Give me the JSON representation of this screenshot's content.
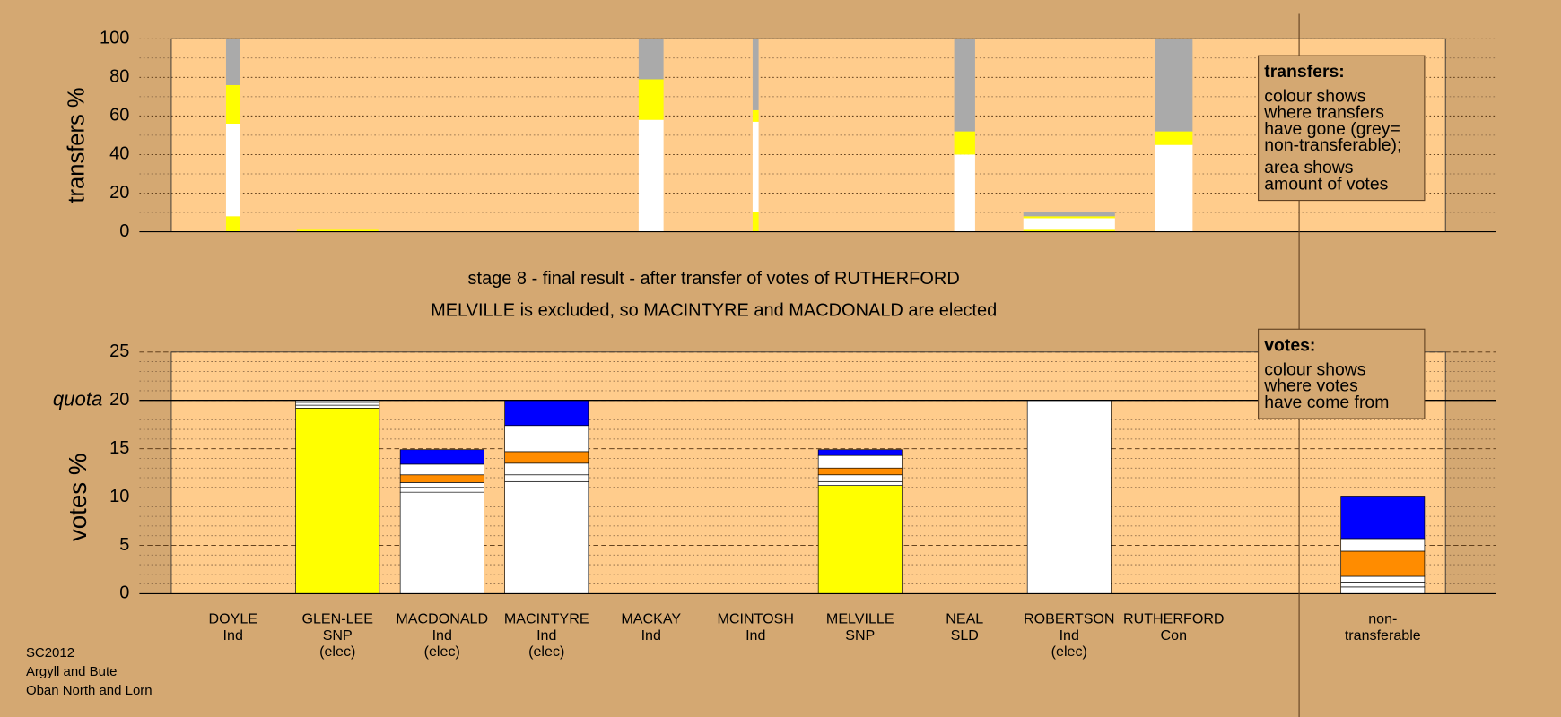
{
  "chart_data": [
    {
      "type": "stacked-column-variable-width",
      "ylabel": "transfers %",
      "ylim": [
        0,
        100
      ],
      "yticks": [
        0,
        20,
        40,
        60,
        80,
        100
      ],
      "columns": [
        {
          "transfer_volume": 14,
          "values": [
            8,
            48,
            20,
            24
          ],
          "colors": [
            "#ffff00",
            "#ffffff",
            "#ffff00",
            "#aaaaaa"
          ]
        },
        {
          "transfer_volume": 82,
          "values": [
            1
          ],
          "colors": [
            "#ffff00"
          ]
        },
        null,
        null,
        {
          "transfer_volume": 25,
          "values": [
            58,
            21,
            21
          ],
          "colors": [
            "#ffffff",
            "#ffff00",
            "#aaaaaa"
          ]
        },
        {
          "transfer_volume": 6,
          "values": [
            10,
            47,
            6,
            37
          ],
          "colors": [
            "#ffff00",
            "#ffffff",
            "#ffff00",
            "#aaaaaa"
          ]
        },
        null,
        {
          "transfer_volume": 21,
          "values": [
            40,
            12,
            48
          ],
          "colors": [
            "#ffffff",
            "#ffff00",
            "#aaaaaa"
          ]
        },
        {
          "transfer_volume": 92,
          "values": [
            1,
            6,
            1,
            2
          ],
          "colors": [
            "#ffff00",
            "#ffffff",
            "#ffff00",
            "#aaaaaa"
          ]
        },
        {
          "transfer_volume": 38,
          "values": [
            45,
            7,
            48
          ],
          "colors": [
            "#ffffff",
            "#ffff00",
            "#aaaaaa"
          ]
        }
      ],
      "legend": {
        "title": "transfers:",
        "lines": [
          "colour shows",
          "where transfers",
          "have gone (grey=",
          "non-transferable);"
        ],
        "lines2": [
          "area shows",
          "amount of votes"
        ]
      }
    },
    {
      "type": "stacked-column",
      "ylabel": "votes %",
      "ylim": [
        0,
        25
      ],
      "yticks": [
        0,
        5,
        10,
        15,
        20,
        25
      ],
      "quota": {
        "value": 20,
        "label": "quota"
      },
      "categories": [
        [
          "DOYLE",
          "Ind"
        ],
        [
          "GLEN-LEE",
          "SNP",
          "(elec)"
        ],
        [
          "MACDONALD",
          "Ind",
          "(elec)"
        ],
        [
          "MACINTYRE",
          "Ind",
          "(elec)"
        ],
        [
          "MACKAY",
          "Ind"
        ],
        [
          "MCINTOSH",
          "Ind"
        ],
        [
          "MELVILLE",
          "SNP"
        ],
        [
          "NEAL",
          "SLD"
        ],
        [
          "ROBERTSON",
          "Ind",
          "(elec)"
        ],
        [
          "RUTHERFORD",
          "Con"
        ],
        [
          "non-",
          "transferable"
        ]
      ],
      "columns": [
        {
          "values": [],
          "colors": []
        },
        {
          "values": [
            19.2,
            0.3,
            0.3,
            0.2
          ],
          "colors": [
            "#ffff00",
            "#ffffff",
            "#ffffff",
            "#ffffff"
          ]
        },
        {
          "values": [
            10,
            0.5,
            0.5,
            0.5,
            0.8,
            1.1,
            1.5
          ],
          "colors": [
            "#ffffff",
            "#ffffff",
            "#ffffff",
            "#ffffff",
            "#ff8c00",
            "#ffffff",
            "#0000ff"
          ]
        },
        {
          "values": [
            11.6,
            0.7,
            1.2,
            1.2,
            2.7,
            2.6
          ],
          "colors": [
            "#ffffff",
            "#ffffff",
            "#ffffff",
            "#ff8c00",
            "#ffffff",
            "#0000ff"
          ]
        },
        {
          "values": [],
          "colors": []
        },
        {
          "values": [],
          "colors": []
        },
        {
          "values": [
            11.2,
            0.4,
            0.7,
            0.7,
            1.3,
            0.6
          ],
          "colors": [
            "#ffff00",
            "#ffffff",
            "#ffffff",
            "#ff8c00",
            "#ffffff",
            "#0000ff"
          ]
        },
        {
          "values": [],
          "colors": []
        },
        {
          "values": [
            20
          ],
          "colors": [
            "#ffffff"
          ]
        },
        {
          "values": [],
          "colors": []
        },
        {
          "values": [
            0.7,
            0.5,
            0.6,
            2.6,
            1.3,
            4.4
          ],
          "colors": [
            "#ffffff",
            "#ffffff",
            "#ffffff",
            "#ff8c00",
            "#ffffff",
            "#0000ff"
          ]
        }
      ],
      "legend": {
        "title": "votes:",
        "lines": [
          "colour shows",
          "where votes",
          "have come from"
        ]
      }
    }
  ],
  "caption": [
    "stage 8 - final result - after transfer of votes of RUTHERFORD",
    "MELVILLE is excluded, so MACINTYRE and MACDONALD are elected"
  ],
  "footer": [
    "SC2012",
    "Argyll and Bute",
    "Oban North and Lorn"
  ]
}
